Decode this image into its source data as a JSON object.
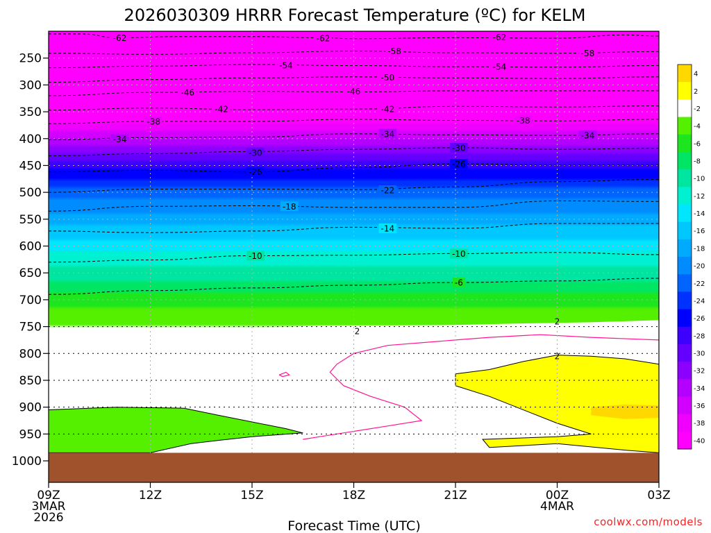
{
  "chart_data": {
    "type": "heatmap",
    "title": "2026030309 HRRR Forecast Temperature (ºC) for KELM",
    "xlabel": "Forecast Time (UTC)",
    "ylabel": "",
    "credit": "coolwx.com/models",
    "x_ticks": [
      {
        "hour": 0,
        "lines": [
          "09Z",
          "3MAR",
          "2026"
        ]
      },
      {
        "hour": 3,
        "lines": [
          "12Z"
        ]
      },
      {
        "hour": 6,
        "lines": [
          "15Z"
        ]
      },
      {
        "hour": 9,
        "lines": [
          "18Z"
        ]
      },
      {
        "hour": 12,
        "lines": [
          "21Z"
        ]
      },
      {
        "hour": 15,
        "lines": [
          "00Z",
          "4MAR"
        ]
      },
      {
        "hour": 18,
        "lines": [
          "03Z"
        ]
      }
    ],
    "xlim": [
      0,
      18
    ],
    "y_ticks": [
      250,
      300,
      350,
      400,
      450,
      500,
      550,
      600,
      650,
      700,
      750,
      800,
      850,
      900,
      950,
      1000
    ],
    "ylim": [
      200,
      1040
    ],
    "y_axis_inverted": true,
    "surface_pressure_hpa": 985,
    "grid": "dotted",
    "colorbar": {
      "position": "right",
      "labels": [
        "4",
        "2",
        "-2",
        "-4",
        "-6",
        "-8",
        "-10",
        "-12",
        "-14",
        "-16",
        "-18",
        "-20",
        "-22",
        "-24",
        "-26",
        "-28",
        "-30",
        "-32",
        "-34",
        "-36",
        "-38",
        "-40"
      ],
      "colors": [
        "#ffd800",
        "#ffff00",
        "#ffffff",
        "#55f000",
        "#1ee61e",
        "#00e664",
        "#00e6a0",
        "#00f0d2",
        "#00e6ff",
        "#00c8ff",
        "#00aaff",
        "#008cff",
        "#0064ff",
        "#0032ff",
        "#0000ff",
        "#3c00ff",
        "#6400ff",
        "#8c00ff",
        "#b400ff",
        "#d200ff",
        "#f000ff",
        "#ff00ff"
      ]
    },
    "temperature_levels": [
      {
        "p": 1000,
        "t": 0
      },
      {
        "p": 950,
        "t": -1
      },
      {
        "p": 900,
        "t": -2.5
      },
      {
        "p": 850,
        "t": 1
      },
      {
        "p": 800,
        "t": -1
      },
      {
        "p": 750,
        "t": -2
      },
      {
        "p": 700,
        "t": -5
      },
      {
        "p": 650,
        "t": -9
      },
      {
        "p": 600,
        "t": -13
      },
      {
        "p": 550,
        "t": -17
      },
      {
        "p": 500,
        "t": -21
      },
      {
        "p": 450,
        "t": -27
      },
      {
        "p": 400,
        "t": -34
      },
      {
        "p": 350,
        "t": -41
      },
      {
        "p": 300,
        "t": -48
      },
      {
        "p": 250,
        "t": -56
      },
      {
        "p": 200,
        "t": -63
      }
    ],
    "contours": [
      {
        "temp": -62,
        "points": [
          [
            0,
            205
          ],
          [
            1,
            205
          ],
          [
            2,
            212
          ],
          [
            4,
            210
          ],
          [
            6,
            210
          ],
          [
            8,
            212
          ],
          [
            9,
            214
          ],
          [
            12,
            212
          ],
          [
            15,
            213
          ],
          [
            17,
            207
          ],
          [
            18,
            209
          ]
        ],
        "labels": [
          [
            2.1,
            212
          ],
          [
            8.1,
            213
          ],
          [
            13.3,
            211
          ]
        ]
      },
      {
        "temp": -58,
        "points": [
          [
            0,
            241
          ],
          [
            3,
            243
          ],
          [
            6,
            240
          ],
          [
            9,
            237
          ],
          [
            12,
            240
          ],
          [
            15,
            241
          ],
          [
            18,
            238
          ]
        ],
        "labels": [
          [
            10.2,
            237
          ],
          [
            15.9,
            241
          ]
        ]
      },
      {
        "temp": -54,
        "points": [
          [
            0,
            268
          ],
          [
            3,
            265
          ],
          [
            6,
            262
          ],
          [
            9,
            264
          ],
          [
            12,
            266
          ],
          [
            15,
            267
          ],
          [
            18,
            264
          ]
        ],
        "labels": [
          [
            7.0,
            263
          ],
          [
            13.3,
            266
          ]
        ]
      },
      {
        "temp": -50,
        "points": [
          [
            0,
            295
          ],
          [
            3,
            290
          ],
          [
            6,
            287
          ],
          [
            9,
            285
          ],
          [
            12,
            287
          ],
          [
            15,
            288
          ],
          [
            18,
            285
          ]
        ],
        "labels": [
          [
            10.0,
            286
          ]
        ]
      },
      {
        "temp": -46,
        "points": [
          [
            0,
            320
          ],
          [
            3,
            314
          ],
          [
            6,
            312
          ],
          [
            9,
            313
          ],
          [
            12,
            311
          ],
          [
            15,
            311
          ],
          [
            18,
            311
          ]
        ],
        "labels": [
          [
            4.1,
            314
          ],
          [
            9.0,
            312
          ]
        ]
      },
      {
        "temp": -42,
        "points": [
          [
            0,
            347
          ],
          [
            3,
            343
          ],
          [
            6,
            346
          ],
          [
            9,
            345
          ],
          [
            12,
            340
          ],
          [
            15,
            341
          ],
          [
            18,
            339
          ]
        ],
        "labels": [
          [
            5.1,
            345
          ],
          [
            10.0,
            345
          ]
        ]
      },
      {
        "temp": -38,
        "points": [
          [
            0,
            372
          ],
          [
            3,
            368
          ],
          [
            6,
            368
          ],
          [
            9,
            364
          ],
          [
            12,
            366
          ],
          [
            15,
            367
          ],
          [
            18,
            364
          ]
        ],
        "labels": [
          [
            3.1,
            368
          ],
          [
            14.0,
            366
          ]
        ]
      },
      {
        "temp": -34,
        "points": [
          [
            0,
            402
          ],
          [
            3,
            398
          ],
          [
            6,
            397
          ],
          [
            9,
            391
          ],
          [
            12,
            393
          ],
          [
            15,
            394
          ],
          [
            18,
            391
          ]
        ],
        "labels": [
          [
            2.1,
            401
          ],
          [
            10.0,
            391
          ],
          [
            15.9,
            394
          ]
        ]
      },
      {
        "temp": -30,
        "points": [
          [
            0,
            432
          ],
          [
            3,
            428
          ],
          [
            6,
            424
          ],
          [
            9,
            420
          ],
          [
            12,
            417
          ],
          [
            15,
            420
          ],
          [
            18,
            418
          ]
        ],
        "labels": [
          [
            6.1,
            426
          ],
          [
            12.1,
            417
          ]
        ]
      },
      {
        "temp": -26,
        "points": [
          [
            0,
            462
          ],
          [
            3,
            459
          ],
          [
            6,
            462
          ],
          [
            9,
            454
          ],
          [
            12,
            447
          ],
          [
            15,
            449
          ],
          [
            18,
            449
          ]
        ],
        "labels": [
          [
            6.1,
            462
          ],
          [
            12.1,
            447
          ]
        ]
      },
      {
        "temp": -22,
        "points": [
          [
            0,
            500
          ],
          [
            3,
            494
          ],
          [
            6,
            494
          ],
          [
            9,
            495
          ],
          [
            12,
            490
          ],
          [
            15,
            480
          ],
          [
            18,
            476
          ]
        ],
        "labels": [
          [
            10.0,
            496
          ]
        ]
      },
      {
        "temp": -18,
        "points": [
          [
            0,
            535
          ],
          [
            3,
            526
          ],
          [
            6,
            525
          ],
          [
            9,
            528
          ],
          [
            12,
            528
          ],
          [
            15,
            516
          ],
          [
            18,
            517
          ]
        ],
        "labels": [
          [
            7.1,
            526
          ]
        ]
      },
      {
        "temp": -14,
        "points": [
          [
            0,
            572
          ],
          [
            3,
            575
          ],
          [
            6,
            572
          ],
          [
            9,
            565
          ],
          [
            12,
            567
          ],
          [
            15,
            558
          ],
          [
            18,
            558
          ]
        ],
        "labels": [
          [
            10.0,
            567
          ]
        ]
      },
      {
        "temp": -10,
        "points": [
          [
            0,
            630
          ],
          [
            3,
            626
          ],
          [
            6,
            618
          ],
          [
            9,
            617
          ],
          [
            12,
            614
          ],
          [
            15,
            612
          ],
          [
            18,
            616
          ]
        ],
        "labels": [
          [
            6.1,
            618
          ],
          [
            12.1,
            614
          ]
        ]
      },
      {
        "temp": -6,
        "points": [
          [
            0,
            690
          ],
          [
            3,
            683
          ],
          [
            6,
            678
          ],
          [
            9,
            673
          ],
          [
            12,
            668
          ],
          [
            15,
            665
          ],
          [
            18,
            660
          ]
        ],
        "labels": [
          [
            12.1,
            668
          ]
        ]
      }
    ],
    "labels_2c": [
      [
        9.1,
        758
      ],
      [
        15.0,
        740
      ],
      [
        15.0,
        805
      ]
    ]
  }
}
